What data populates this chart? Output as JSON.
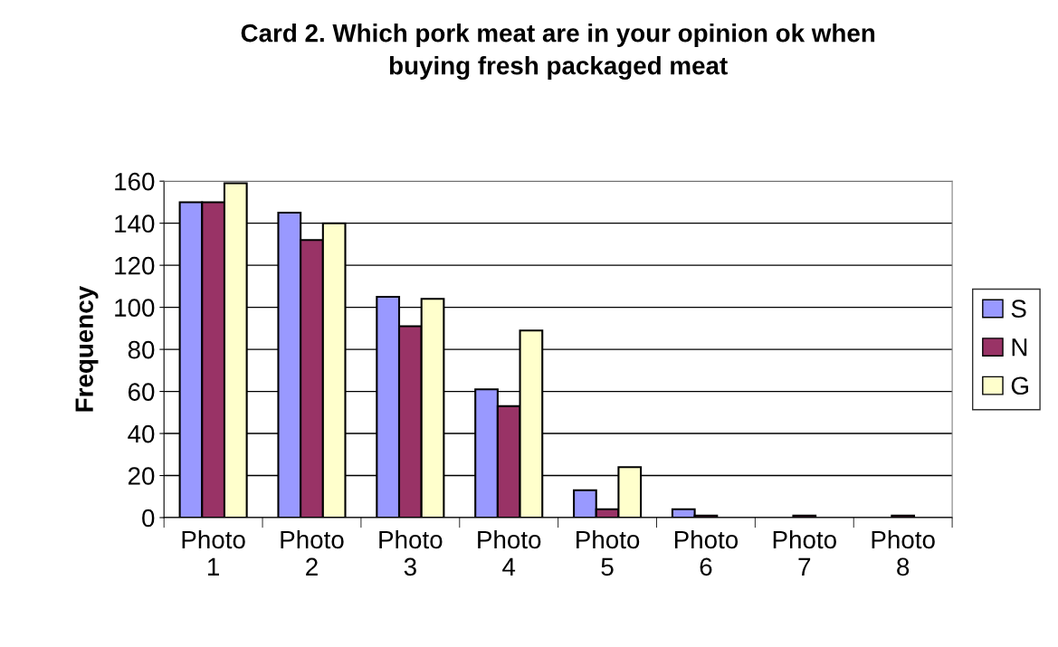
{
  "chart_data": {
    "type": "bar",
    "title": "Card 2. Which pork meat are in your opinion ok when\nbuying fresh packaged meat",
    "ylabel": "Frequency",
    "categories": [
      "Photo\n1",
      "Photo\n2",
      "Photo\n3",
      "Photo\n4",
      "Photo\n5",
      "Photo\n6",
      "Photo\n7",
      "Photo\n8"
    ],
    "series": [
      {
        "name": "S",
        "color": "#9999ff",
        "values": [
          150,
          145,
          105,
          61,
          13,
          4,
          0,
          0
        ]
      },
      {
        "name": "N",
        "color": "#993366",
        "values": [
          150,
          132,
          91,
          53,
          4,
          1,
          1,
          1
        ]
      },
      {
        "name": "G",
        "color": "#ffffcc",
        "values": [
          159,
          140,
          104,
          89,
          24,
          0,
          0,
          0
        ]
      }
    ],
    "ylim": [
      0,
      160
    ],
    "yticks": [
      0,
      20,
      40,
      60,
      80,
      100,
      120,
      140,
      160
    ],
    "grid": "y",
    "legend": "right"
  }
}
